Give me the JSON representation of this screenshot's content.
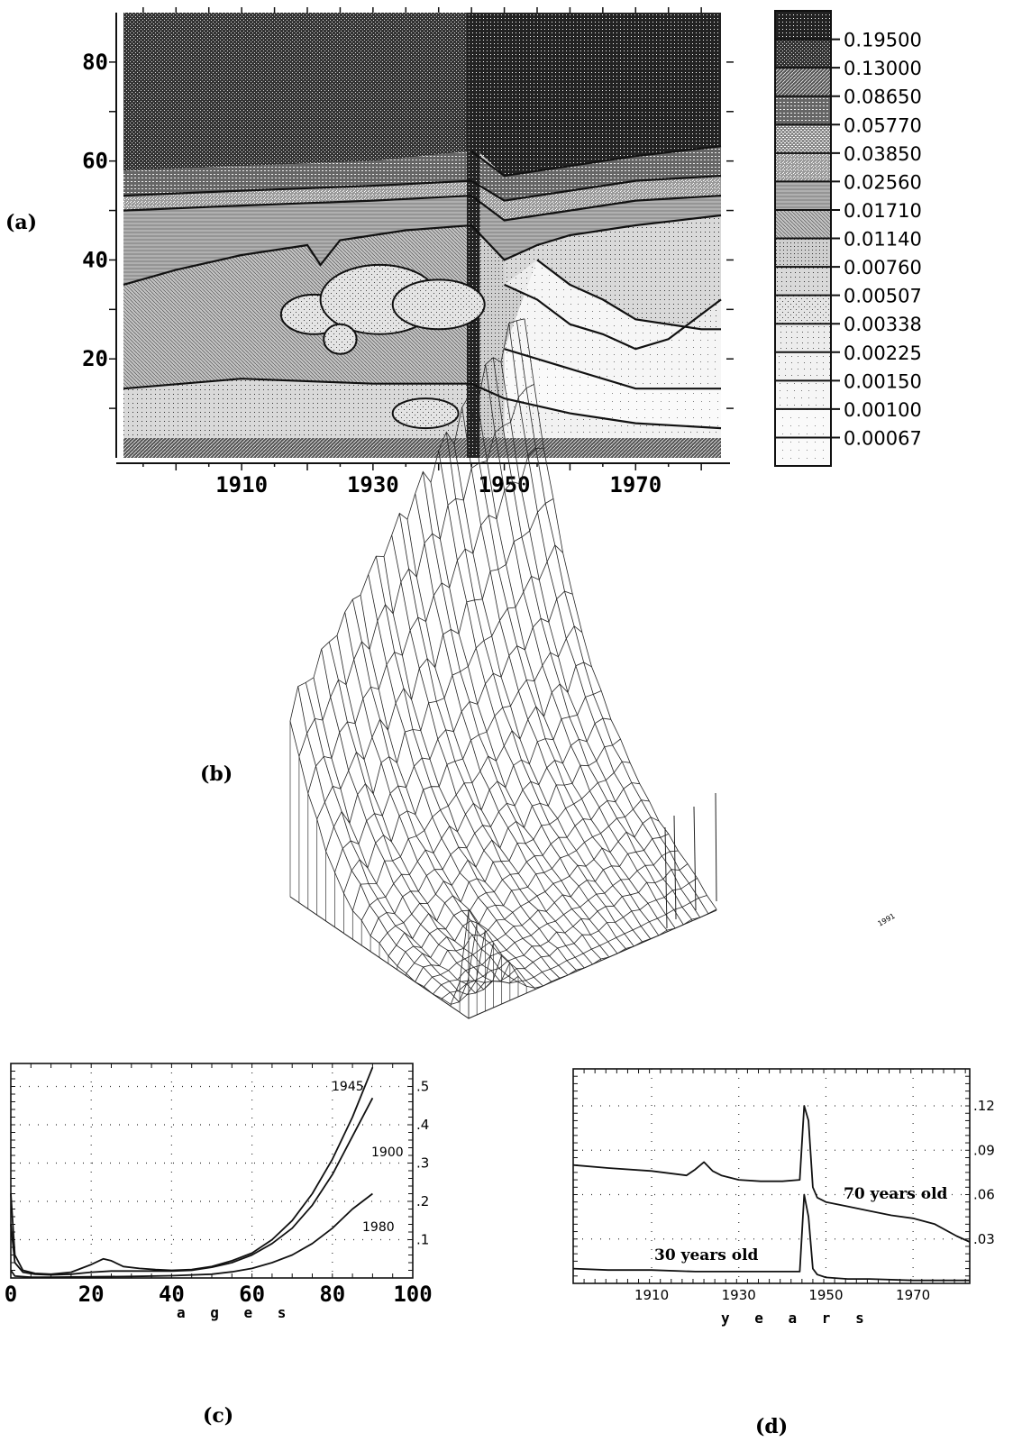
{
  "panels": {
    "a": {
      "label": "(a)"
    },
    "b": {
      "label": "(b)"
    },
    "c": {
      "label": "(c)"
    },
    "d": {
      "label": "(d)"
    }
  },
  "colors": {
    "ink": "#111111",
    "paper": "#ffffff",
    "mid": "#777777"
  },
  "chart_data": [
    {
      "panel": "a",
      "type": "heatmap",
      "x_ticks": [
        "1910",
        "1930",
        "1950",
        "1970"
      ],
      "x_tick_values": [
        1910,
        1930,
        1950,
        1970
      ],
      "y_ticks": [
        "20",
        "40",
        "60",
        "80"
      ],
      "y_tick_values": [
        20,
        40,
        60,
        80
      ],
      "xlim": [
        1892,
        1983
      ],
      "ylim": [
        0,
        90
      ],
      "legend": [
        "0.19500",
        "0.13000",
        "0.08650",
        "0.05770",
        "0.03850",
        "0.02560",
        "0.01710",
        "0.01140",
        "0.00760",
        "0.00507",
        "0.00338",
        "0.00225",
        "0.00150",
        "0.00100",
        "0.00067"
      ],
      "contours": [
        {
          "level": "0.00760",
          "points": [
            [
              1892,
              35
            ],
            [
              1900,
              38
            ],
            [
              1910,
              41
            ],
            [
              1920,
              43
            ],
            [
              1922,
              39
            ],
            [
              1925,
              44
            ],
            [
              1935,
              46
            ],
            [
              1945,
              47
            ],
            [
              1950,
              40
            ],
            [
              1955,
              43
            ],
            [
              1960,
              45
            ],
            [
              1970,
              47
            ],
            [
              1983,
              49
            ]
          ]
        },
        {
          "level": "0.01140",
          "points": [
            [
              1892,
              50
            ],
            [
              1910,
              51
            ],
            [
              1930,
              52
            ],
            [
              1945,
              53
            ],
            [
              1950,
              48
            ],
            [
              1960,
              50
            ],
            [
              1970,
              52
            ],
            [
              1983,
              53
            ]
          ]
        },
        {
          "level": "0.01710",
          "points": [
            [
              1892,
              53
            ],
            [
              1910,
              54
            ],
            [
              1930,
              55
            ],
            [
              1945,
              56
            ],
            [
              1950,
              52
            ],
            [
              1960,
              54
            ],
            [
              1970,
              56
            ],
            [
              1983,
              57
            ]
          ]
        },
        {
          "level": "0.02560",
          "points": [
            [
              1945,
              62
            ],
            [
              1950,
              57
            ],
            [
              1960,
              59
            ],
            [
              1970,
              61
            ],
            [
              1983,
              63
            ]
          ]
        },
        {
          "level": "0.00338",
          "points": [
            [
              1892,
              14
            ],
            [
              1910,
              16
            ],
            [
              1930,
              15
            ],
            [
              1945,
              15
            ],
            [
              1950,
              12
            ],
            [
              1960,
              9
            ],
            [
              1970,
              7
            ],
            [
              1983,
              6
            ]
          ]
        },
        {
          "level": "0.00225",
          "points": [
            [
              1950,
              22
            ],
            [
              1955,
              20
            ],
            [
              1960,
              18
            ],
            [
              1970,
              14
            ],
            [
              1983,
              14
            ]
          ]
        },
        {
          "level": "0.00150",
          "points": [
            [
              1950,
              35
            ],
            [
              1955,
              32
            ],
            [
              1960,
              27
            ],
            [
              1965,
              25
            ],
            [
              1970,
              22
            ],
            [
              1975,
              24
            ],
            [
              1983,
              32
            ]
          ]
        },
        {
          "level": "0.00100",
          "points": [
            [
              1955,
              40
            ],
            [
              1960,
              35
            ],
            [
              1965,
              32
            ],
            [
              1970,
              28
            ],
            [
              1980,
              26
            ],
            [
              1983,
              26
            ]
          ]
        }
      ]
    },
    {
      "panel": "b",
      "type": "surface",
      "x_corner_labels": [
        "1991"
      ]
    },
    {
      "panel": "c",
      "type": "line",
      "xlabel": "a g e s",
      "xlim": [
        0,
        100
      ],
      "ylim": [
        0,
        0.56
      ],
      "x_ticks": [
        "0",
        "20",
        "40",
        "60",
        "80",
        "100"
      ],
      "x_tick_values": [
        0,
        20,
        40,
        60,
        80,
        100
      ],
      "y_ticks": [
        ".1",
        ".2",
        ".3",
        ".4",
        ".5"
      ],
      "y_tick_values": [
        0.1,
        0.2,
        0.3,
        0.4,
        0.5
      ],
      "series": [
        {
          "name": "1945",
          "x": [
            0,
            1,
            3,
            6,
            10,
            15,
            20,
            23,
            25,
            28,
            32,
            36,
            40,
            45,
            50,
            55,
            60,
            65,
            70,
            75,
            80,
            85,
            90
          ],
          "values": [
            0.22,
            0.06,
            0.02,
            0.012,
            0.01,
            0.015,
            0.035,
            0.05,
            0.045,
            0.03,
            0.025,
            0.022,
            0.02,
            0.022,
            0.03,
            0.045,
            0.065,
            0.1,
            0.15,
            0.22,
            0.31,
            0.42,
            0.55
          ]
        },
        {
          "name": "1900",
          "x": [
            0,
            1,
            3,
            6,
            10,
            15,
            20,
            25,
            30,
            35,
            40,
            45,
            50,
            55,
            60,
            65,
            70,
            75,
            80,
            85,
            90
          ],
          "values": [
            0.14,
            0.04,
            0.015,
            0.01,
            0.008,
            0.01,
            0.015,
            0.018,
            0.018,
            0.018,
            0.018,
            0.02,
            0.028,
            0.04,
            0.06,
            0.09,
            0.13,
            0.19,
            0.27,
            0.37,
            0.47
          ]
        },
        {
          "name": "1980",
          "x": [
            0,
            1,
            5,
            10,
            20,
            30,
            40,
            50,
            55,
            60,
            65,
            70,
            75,
            80,
            85,
            90
          ],
          "values": [
            0.02,
            0.005,
            0.002,
            0.002,
            0.003,
            0.004,
            0.006,
            0.01,
            0.016,
            0.025,
            0.04,
            0.06,
            0.09,
            0.13,
            0.18,
            0.22
          ]
        }
      ]
    },
    {
      "panel": "d",
      "type": "line",
      "xlabel": "y e a r s",
      "xlim": [
        1892,
        1983
      ],
      "ylim": [
        0,
        0.145
      ],
      "x_ticks": [
        "1910",
        "1930",
        "1950",
        "1970"
      ],
      "x_tick_values": [
        1910,
        1930,
        1950,
        1970
      ],
      "y_ticks": [
        ".03",
        ".06",
        ".09",
        ".12"
      ],
      "y_tick_values": [
        0.03,
        0.06,
        0.09,
        0.12
      ],
      "series": [
        {
          "name": "70 years old",
          "x": [
            1892,
            1900,
            1910,
            1918,
            1920,
            1922,
            1924,
            1926,
            1930,
            1935,
            1940,
            1944,
            1945,
            1946,
            1947,
            1948,
            1950,
            1955,
            1960,
            1965,
            1970,
            1975,
            1980,
            1983
          ],
          "values": [
            0.08,
            0.078,
            0.076,
            0.073,
            0.077,
            0.082,
            0.076,
            0.073,
            0.07,
            0.069,
            0.069,
            0.07,
            0.12,
            0.11,
            0.065,
            0.058,
            0.055,
            0.052,
            0.049,
            0.046,
            0.044,
            0.04,
            0.032,
            0.028
          ]
        },
        {
          "name": "30 years old",
          "x": [
            1892,
            1900,
            1910,
            1920,
            1930,
            1940,
            1944,
            1945,
            1946,
            1947,
            1948,
            1950,
            1955,
            1960,
            1970,
            1983
          ],
          "values": [
            0.01,
            0.009,
            0.009,
            0.008,
            0.008,
            0.008,
            0.008,
            0.06,
            0.045,
            0.01,
            0.006,
            0.004,
            0.003,
            0.003,
            0.002,
            0.002
          ]
        }
      ]
    }
  ]
}
